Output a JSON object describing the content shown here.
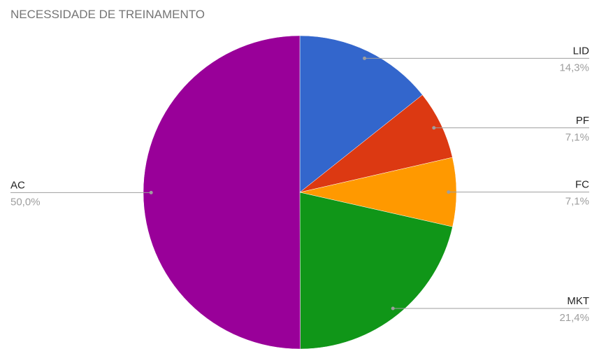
{
  "chart_data": {
    "type": "pie",
    "title": "NECESSIDADE DE TREINAMENTO",
    "categories": [
      "LID",
      "PF",
      "FC",
      "MKT",
      "AC"
    ],
    "values": [
      14.3,
      7.1,
      7.1,
      21.4,
      50.0
    ],
    "value_labels": [
      "14,3%",
      "7,1%",
      "7,1%",
      "21,4%",
      "50,0%"
    ],
    "colors": [
      "#3366cc",
      "#dc3912",
      "#ff9900",
      "#109618",
      "#990099"
    ]
  }
}
